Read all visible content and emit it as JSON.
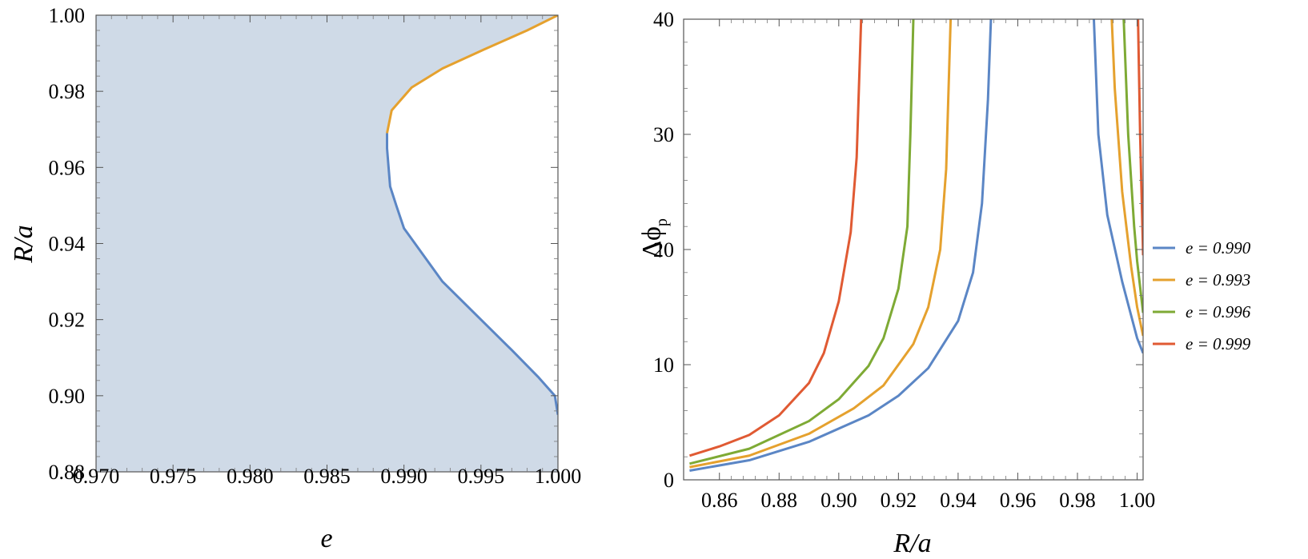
{
  "chart_data": [
    {
      "type": "area",
      "title": "",
      "xlabel": "e",
      "ylabel": "R/a",
      "xlim": [
        0.97,
        1.0
      ],
      "ylim": [
        0.88,
        1.0
      ],
      "xticks": [
        "0.970",
        "0.975",
        "0.980",
        "0.985",
        "0.990",
        "0.995",
        "1.000"
      ],
      "yticks": [
        "0.88",
        "0.90",
        "0.92",
        "0.94",
        "0.96",
        "0.98",
        "1.00"
      ],
      "fill_color": "#cfdae7",
      "series": [
        {
          "color": "#5b86c5",
          "points": [
            [
              1.0,
              0.895
            ],
            [
              0.9998,
              0.9
            ],
            [
              0.9987,
              0.905
            ],
            [
              0.997,
              0.912
            ],
            [
              0.995,
              0.92
            ],
            [
              0.9925,
              0.93
            ],
            [
              0.99,
              0.944
            ],
            [
              0.9895,
              0.95
            ],
            [
              0.9891,
              0.955
            ],
            [
              0.989,
              0.96
            ],
            [
              0.9889,
              0.965
            ],
            [
              0.9889,
              0.969
            ]
          ]
        },
        {
          "color": "#e5a12e",
          "points": [
            [
              0.9889,
              0.969
            ],
            [
              0.9892,
              0.975
            ],
            [
              0.9905,
              0.981
            ],
            [
              0.9925,
              0.986
            ],
            [
              0.9952,
              0.991
            ],
            [
              0.998,
              0.996
            ],
            [
              1.0,
              1.0
            ]
          ]
        }
      ]
    },
    {
      "type": "line",
      "title": "",
      "xlabel": "R/a",
      "ylabel": "Δϕ",
      "ylabel_sub": "p",
      "xlim": [
        0.848,
        1.002
      ],
      "ylim": [
        0,
        40
      ],
      "xticks": [
        "0.86",
        "0.88",
        "0.90",
        "0.92",
        "0.94",
        "0.96",
        "0.98",
        "1.00"
      ],
      "yticks": [
        "0",
        "10",
        "20",
        "30",
        "40"
      ],
      "legend_position": "right",
      "series": [
        {
          "name": "e = 0.990",
          "color": "#5b86c5",
          "left_branch": [
            [
              0.85,
              0.8
            ],
            [
              0.87,
              1.7
            ],
            [
              0.89,
              3.3
            ],
            [
              0.91,
              5.6
            ],
            [
              0.92,
              7.3
            ],
            [
              0.93,
              9.7
            ],
            [
              0.94,
              13.8
            ],
            [
              0.945,
              18.0
            ],
            [
              0.948,
              24.0
            ],
            [
              0.95,
              33.0
            ],
            [
              0.951,
              40
            ]
          ],
          "right_branch": [
            [
              0.9855,
              40
            ],
            [
              0.987,
              30.0
            ],
            [
              0.99,
              23.0
            ],
            [
              0.995,
              17.2
            ],
            [
              1.0,
              12.3
            ],
            [
              1.002,
              11.0
            ]
          ]
        },
        {
          "name": "e = 0.993",
          "color": "#e5a12e",
          "left_branch": [
            [
              0.85,
              1.1
            ],
            [
              0.87,
              2.1
            ],
            [
              0.89,
              4.0
            ],
            [
              0.905,
              6.2
            ],
            [
              0.915,
              8.2
            ],
            [
              0.925,
              11.8
            ],
            [
              0.93,
              15.0
            ],
            [
              0.934,
              20.0
            ],
            [
              0.936,
              27.0
            ],
            [
              0.9375,
              40
            ]
          ],
          "right_branch": [
            [
              0.9915,
              40
            ],
            [
              0.9925,
              34.0
            ],
            [
              0.995,
              25.0
            ],
            [
              0.998,
              18.5
            ],
            [
              1.0,
              15.0
            ],
            [
              1.002,
              12.5
            ]
          ]
        },
        {
          "name": "e = 0.996",
          "color": "#7eaa35",
          "left_branch": [
            [
              0.85,
              1.4
            ],
            [
              0.87,
              2.7
            ],
            [
              0.89,
              5.1
            ],
            [
              0.9,
              7.0
            ],
            [
              0.91,
              9.9
            ],
            [
              0.915,
              12.3
            ],
            [
              0.92,
              16.6
            ],
            [
              0.923,
              22.0
            ],
            [
              0.924,
              30.0
            ],
            [
              0.925,
              40
            ]
          ],
          "right_branch": [
            [
              0.9955,
              40
            ],
            [
              0.997,
              30.0
            ],
            [
              0.999,
              22.0
            ],
            [
              1.0,
              19.0
            ],
            [
              1.002,
              14.5
            ]
          ]
        },
        {
          "name": "e = 0.999",
          "color": "#e05a33",
          "left_branch": [
            [
              0.85,
              2.1
            ],
            [
              0.86,
              2.9
            ],
            [
              0.87,
              3.9
            ],
            [
              0.88,
              5.6
            ],
            [
              0.89,
              8.4
            ],
            [
              0.895,
              11.0
            ],
            [
              0.9,
              15.5
            ],
            [
              0.904,
              21.5
            ],
            [
              0.906,
              28.0
            ],
            [
              0.9075,
              40
            ]
          ],
          "right_branch": [
            [
              1.0003,
              40
            ],
            [
              1.001,
              30.0
            ],
            [
              1.002,
              19.5
            ]
          ]
        }
      ]
    }
  ]
}
